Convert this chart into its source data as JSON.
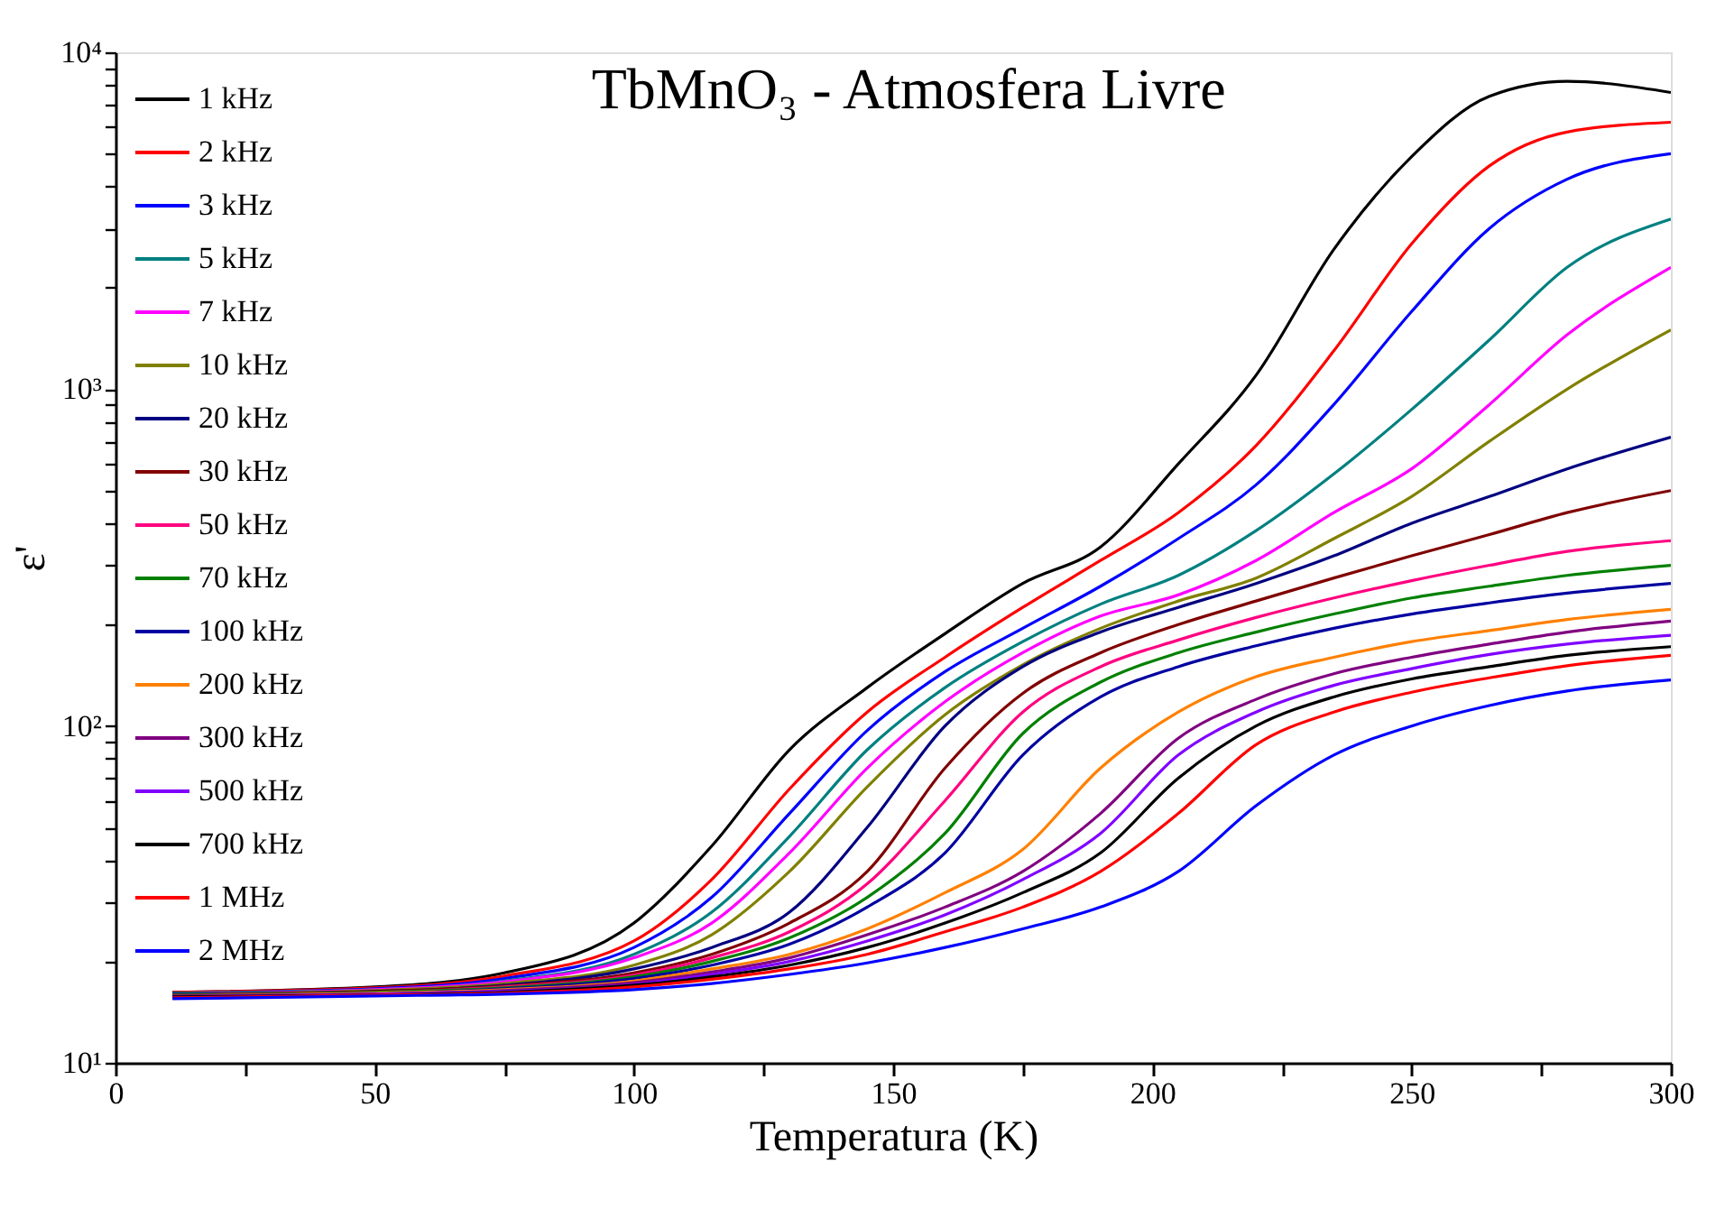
{
  "chart_data": {
    "type": "line",
    "title": "TbMnO₃ - Atmosfera Livre",
    "xlabel": "Temperatura (K)",
    "ylabel": "ε'",
    "x": [
      11,
      50,
      75,
      100,
      115,
      130,
      145,
      160,
      175,
      190,
      205,
      220,
      235,
      250,
      265,
      280,
      300
    ],
    "xlim": [
      0,
      300
    ],
    "xticks": [
      0,
      {
        "value": 25,
        "label": null
      },
      50,
      {
        "value": 75,
        "label": null
      },
      100,
      {
        "value": 125,
        "label": null
      },
      150,
      {
        "value": 175,
        "label": null
      },
      200,
      {
        "value": 225,
        "label": null
      },
      250,
      {
        "value": 275,
        "label": null
      },
      300
    ],
    "ylim": [
      10,
      10000
    ],
    "yticks": [
      {
        "value": 10,
        "label": "10¹"
      },
      {
        "value": 20,
        "label": null
      },
      {
        "value": 30,
        "label": null
      },
      {
        "value": 40,
        "label": null
      },
      {
        "value": 50,
        "label": null
      },
      {
        "value": 60,
        "label": null
      },
      {
        "value": 70,
        "label": null
      },
      {
        "value": 80,
        "label": null
      },
      {
        "value": 90,
        "label": null
      },
      {
        "value": 100,
        "label": "10²"
      },
      {
        "value": 200,
        "label": null
      },
      {
        "value": 300,
        "label": null
      },
      {
        "value": 400,
        "label": null
      },
      {
        "value": 500,
        "label": null
      },
      {
        "value": 600,
        "label": null
      },
      {
        "value": 700,
        "label": null
      },
      {
        "value": 800,
        "label": null
      },
      {
        "value": 900,
        "label": null
      },
      {
        "value": 1000,
        "label": "10³"
      },
      {
        "value": 2000,
        "label": null
      },
      {
        "value": 3000,
        "label": null
      },
      {
        "value": 4000,
        "label": null
      },
      {
        "value": 5000,
        "label": null
      },
      {
        "value": 6000,
        "label": null
      },
      {
        "value": 7000,
        "label": null
      },
      {
        "value": 8000,
        "label": null
      },
      {
        "value": 9000,
        "label": null
      },
      {
        "value": 10000,
        "label": "10⁴"
      }
    ],
    "log": "y",
    "grid": false,
    "legend": "top left",
    "marker": "none",
    "line_style": "solid",
    "series": [
      {
        "name": "1 kHz",
        "color": "#000000",
        "values": [
          16.2,
          16.8,
          18.5,
          26,
          44,
          85,
          130,
          188,
          265,
          340,
          600,
          1100,
          2600,
          4900,
          7400,
          8200,
          7600
        ]
      },
      {
        "name": "2 kHz",
        "color": "#ff0000",
        "values": [
          16.2,
          16.7,
          18.1,
          23,
          35,
          65,
          110,
          160,
          225,
          310,
          430,
          680,
          1300,
          2700,
          4600,
          5800,
          6200
        ]
      },
      {
        "name": "3 kHz",
        "color": "#0000ff",
        "values": [
          16.1,
          16.6,
          17.8,
          22,
          31,
          55,
          97,
          145,
          195,
          260,
          360,
          520,
          900,
          1700,
          3000,
          4200,
          5000
        ]
      },
      {
        "name": "5 kHz",
        "color": "#008080",
        "values": [
          16.1,
          16.5,
          17.5,
          21,
          28,
          47,
          85,
          130,
          178,
          230,
          280,
          380,
          560,
          870,
          1400,
          2300,
          3200
        ]
      },
      {
        "name": "7 kHz",
        "color": "#ff00ff",
        "values": [
          16.0,
          16.5,
          17.4,
          20.5,
          26,
          42,
          75,
          118,
          165,
          212,
          245,
          310,
          430,
          580,
          900,
          1450,
          2300
        ]
      },
      {
        "name": "10 kHz",
        "color": "#808000",
        "values": [
          16.0,
          16.4,
          17.2,
          19.5,
          24,
          37,
          66,
          108,
          152,
          195,
          235,
          275,
          360,
          480,
          700,
          1000,
          1500
        ]
      },
      {
        "name": "20 kHz",
        "color": "#000080",
        "values": [
          16.0,
          16.3,
          17.0,
          19,
          22,
          28,
          50,
          100,
          150,
          190,
          225,
          265,
          320,
          400,
          480,
          580,
          720
        ]
      },
      {
        "name": "30 kHz",
        "color": "#800000",
        "values": [
          15.9,
          16.3,
          16.9,
          18.5,
          21,
          26,
          37,
          75,
          125,
          165,
          200,
          235,
          275,
          320,
          370,
          430,
          500
        ]
      },
      {
        "name": "50 kHz",
        "color": "#ff0080",
        "values": [
          15.9,
          16.2,
          16.8,
          18.2,
          20.5,
          24.5,
          34,
          60,
          110,
          150,
          180,
          210,
          240,
          270,
          300,
          330,
          355
        ]
      },
      {
        "name": "70 kHz",
        "color": "#008000",
        "values": [
          15.9,
          16.2,
          16.7,
          18,
          20,
          23.5,
          31,
          48,
          95,
          135,
          165,
          190,
          215,
          240,
          260,
          280,
          300
        ]
      },
      {
        "name": "100 kHz",
        "color": "#0000a0",
        "values": [
          15.8,
          16.1,
          16.6,
          17.8,
          19.5,
          22.5,
          29,
          42,
          82,
          122,
          150,
          173,
          195,
          215,
          232,
          248,
          265
        ]
      },
      {
        "name": "200 kHz",
        "color": "#ff8000",
        "values": [
          15.8,
          16.1,
          16.5,
          17.5,
          19,
          21,
          25,
          32,
          43,
          75,
          110,
          140,
          160,
          178,
          192,
          207,
          222
        ]
      },
      {
        "name": "300 kHz",
        "color": "#800080",
        "values": [
          15.8,
          16.0,
          16.4,
          17.3,
          18.6,
          20.5,
          24,
          29,
          37,
          55,
          92,
          120,
          143,
          160,
          175,
          190,
          205
        ]
      },
      {
        "name": "500 kHz",
        "color": "#8000ff",
        "values": [
          15.7,
          16.0,
          16.3,
          17.1,
          18.3,
          20,
          23,
          27.5,
          35,
          48,
          82,
          110,
          132,
          148,
          163,
          175,
          186
        ]
      },
      {
        "name": "700 kHz",
        "color": "#000000",
        "values": [
          15.7,
          15.9,
          16.2,
          17,
          18,
          19.5,
          22,
          26,
          32,
          42,
          70,
          100,
          122,
          138,
          150,
          162,
          172
        ]
      },
      {
        "name": "1 MHz",
        "color": "#ff0000",
        "values": [
          15.6,
          15.9,
          16.1,
          16.8,
          17.7,
          19,
          21,
          24.5,
          29,
          37,
          55,
          88,
          110,
          126,
          139,
          151,
          162
        ]
      },
      {
        "name": "2 MHz",
        "color": "#0000ff",
        "values": [
          15.5,
          15.8,
          16.0,
          16.5,
          17.2,
          18.3,
          19.8,
          22,
          25,
          29,
          37,
          58,
          82,
          100,
          115,
          127,
          137
        ]
      }
    ]
  }
}
